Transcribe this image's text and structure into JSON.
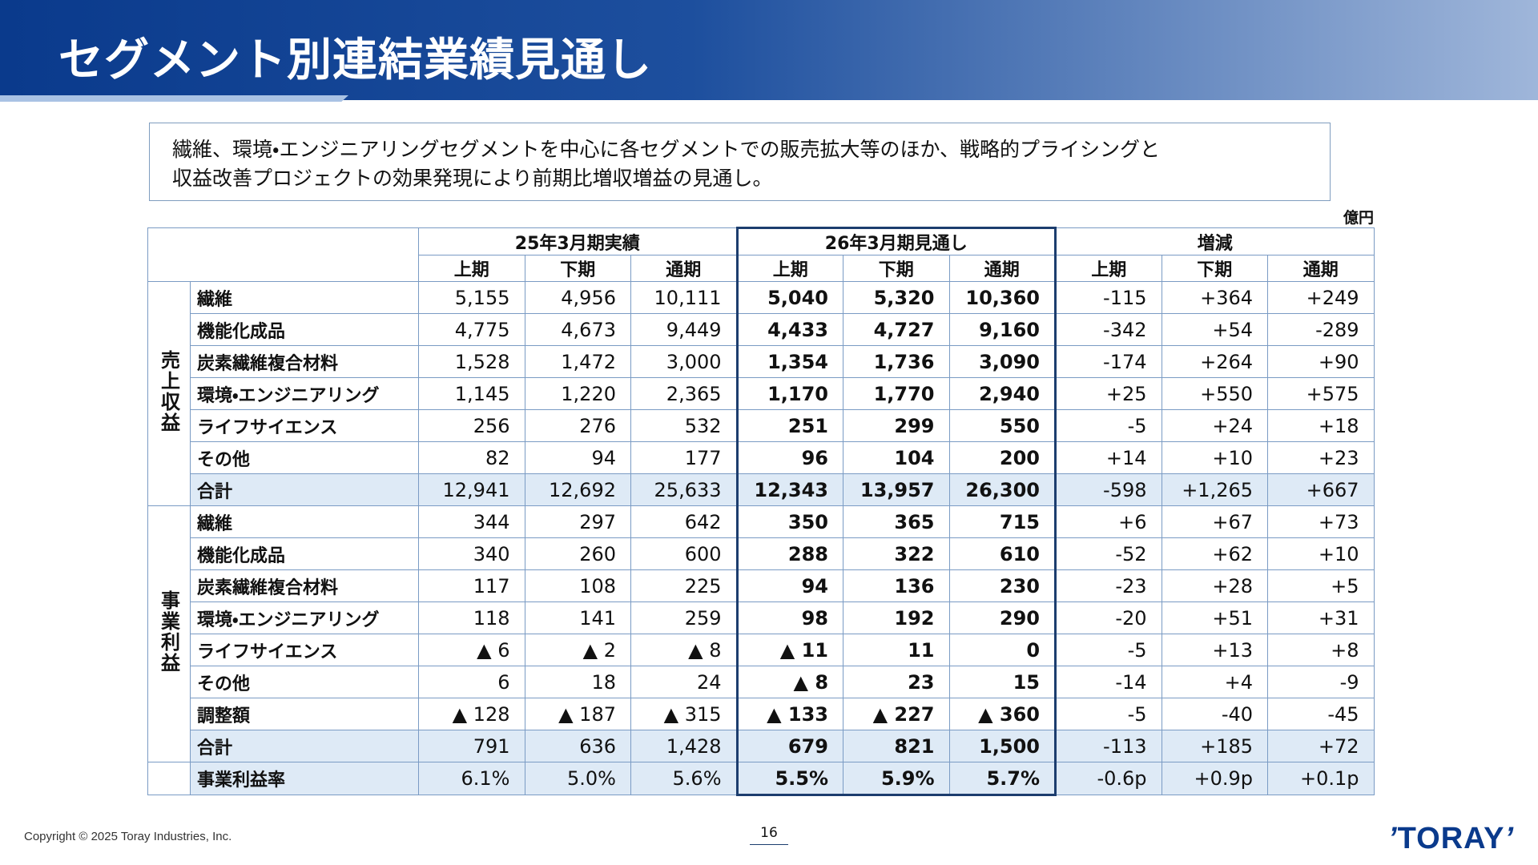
{
  "header": {
    "title": "セグメント別連結業績見通し"
  },
  "summary": [
    "繊維、環境・エンジニアリングセグメントを中心に各セグメントでの販売拡大等のほか、戦略的プライシングと",
    "収益改善プロジェクトの効果発現により前期比増収増益の見通し。"
  ],
  "unit": "億円",
  "table": {
    "groups": [
      "25年3月期実績",
      "26年3月期見通し",
      "増減"
    ],
    "subcolumns": [
      "上期",
      "下期",
      "通期",
      "上期",
      "下期",
      "通期",
      "上期",
      "下期",
      "通期"
    ],
    "sections": [
      {
        "label": "売上収益",
        "rows": [
          {
            "label": "繊維",
            "cells": [
              "5,155",
              "4,956",
              "10,111",
              "5,040",
              "5,320",
              "10,360",
              "-115",
              "+364",
              "+249"
            ]
          },
          {
            "label": "機能化成品",
            "cells": [
              "4,775",
              "4,673",
              "9,449",
              "4,433",
              "4,727",
              "9,160",
              "-342",
              "+54",
              "-289"
            ]
          },
          {
            "label": "炭素繊維複合材料",
            "cells": [
              "1,528",
              "1,472",
              "3,000",
              "1,354",
              "1,736",
              "3,090",
              "-174",
              "+264",
              "+90"
            ]
          },
          {
            "label": "環境・エンジニアリング",
            "cells": [
              "1,145",
              "1,220",
              "2,365",
              "1,170",
              "1,770",
              "2,940",
              "+25",
              "+550",
              "+575"
            ]
          },
          {
            "label": "ライフサイエンス",
            "cells": [
              "256",
              "276",
              "532",
              "251",
              "299",
              "550",
              "-5",
              "+24",
              "+18"
            ]
          },
          {
            "label": "その他",
            "cells": [
              "82",
              "94",
              "177",
              "96",
              "104",
              "200",
              "+14",
              "+10",
              "+23"
            ]
          },
          {
            "label": "合計",
            "cells": [
              "12,941",
              "12,692",
              "25,633",
              "12,343",
              "13,957",
              "26,300",
              "-598",
              "+1,265",
              "+667"
            ]
          }
        ]
      },
      {
        "label": "事業利益",
        "rows": [
          {
            "label": "繊維",
            "cells": [
              "344",
              "297",
              "642",
              "350",
              "365",
              "715",
              "+6",
              "+67",
              "+73"
            ]
          },
          {
            "label": "機能化成品",
            "cells": [
              "340",
              "260",
              "600",
              "288",
              "322",
              "610",
              "-52",
              "+62",
              "+10"
            ]
          },
          {
            "label": "炭素繊維複合材料",
            "cells": [
              "117",
              "108",
              "225",
              "94",
              "136",
              "230",
              "-23",
              "+28",
              "+5"
            ]
          },
          {
            "label": "環境・エンジニアリング",
            "cells": [
              "118",
              "141",
              "259",
              "98",
              "192",
              "290",
              "-20",
              "+51",
              "+31"
            ]
          },
          {
            "label": "ライフサイエンス",
            "cells": [
              "▲ 6",
              "▲ 2",
              "▲ 8",
              "▲ 11",
              "11",
              "0",
              "-5",
              "+13",
              "+8"
            ]
          },
          {
            "label": "その他",
            "cells": [
              "6",
              "18",
              "24",
              "▲ 8",
              "23",
              "15",
              "-14",
              "+4",
              "-9"
            ]
          },
          {
            "label": "調整額",
            "cells": [
              "▲ 128",
              "▲ 187",
              "▲ 315",
              "▲ 133",
              "▲ 227",
              "▲ 360",
              "-5",
              "-40",
              "-45"
            ]
          },
          {
            "label": "合計",
            "cells": [
              "791",
              "636",
              "1,428",
              "679",
              "821",
              "1,500",
              "-113",
              "+185",
              "+72"
            ]
          }
        ]
      }
    ],
    "ratio_row": {
      "label": "事業利益率",
      "cells": [
        "6.1%",
        "5.0%",
        "5.6%",
        "5.5%",
        "5.9%",
        "5.7%",
        "-0.6p",
        "+0.9p",
        "+0.1p"
      ]
    }
  },
  "footer": {
    "copyright": "Copyright © 2025 Toray Industries, Inc.",
    "page": "16",
    "logo": "TORAY"
  }
}
